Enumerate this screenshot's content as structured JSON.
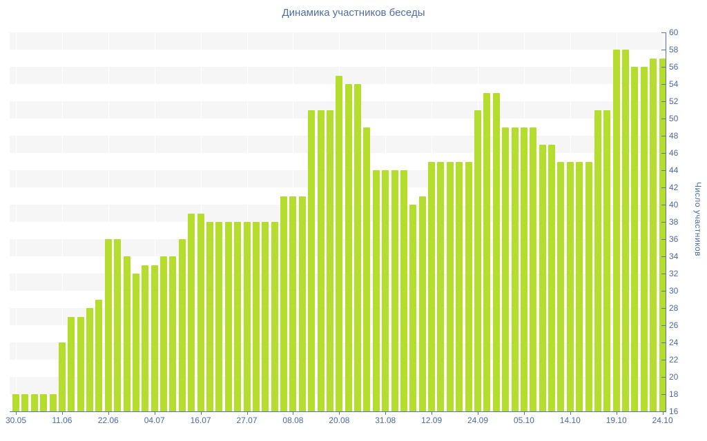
{
  "chart_data": {
    "type": "bar",
    "title": "Динамика участников беседы",
    "ylabel": "Число участников",
    "xlabel": "",
    "ylim": [
      16,
      60
    ],
    "y_tick_step": 2,
    "y_tick_labels": [
      "16",
      "18",
      "20",
      "22",
      "24",
      "26",
      "28",
      "30",
      "32",
      "34",
      "36",
      "38",
      "40",
      "42",
      "44",
      "46",
      "48",
      "50",
      "52",
      "54",
      "56",
      "58",
      "60"
    ],
    "x_tick_labels": [
      "30.05",
      "11.06",
      "22.06",
      "04.07",
      "16.07",
      "27.07",
      "08.08",
      "20.08",
      "31.08",
      "12.09",
      "24.09",
      "05.10",
      "14.10",
      "19.10",
      "24.10"
    ],
    "x_tick_every": 5,
    "values": [
      18,
      18,
      18,
      18,
      18,
      24,
      27,
      27,
      28,
      29,
      36,
      36,
      34,
      32,
      33,
      33,
      34,
      34,
      36,
      39,
      39,
      38,
      38,
      38,
      38,
      38,
      38,
      38,
      38,
      41,
      41,
      41,
      51,
      51,
      51,
      55,
      54,
      54,
      49,
      44,
      44,
      44,
      44,
      40,
      41,
      45,
      45,
      45,
      45,
      45,
      51,
      53,
      53,
      49,
      49,
      49,
      49,
      47,
      47,
      45,
      45,
      45,
      45,
      51,
      51,
      58,
      58,
      56,
      56,
      57,
      57
    ],
    "grid": "alternating horizontal gray bands, 2 units per band",
    "legend": "none",
    "colors": {
      "bar": "#b4dd2e",
      "axis": "#5674b2",
      "tick_label": "#4a69a6",
      "title": "#4f6da9",
      "band_gray": "#f6f6f7",
      "background": "#ffffff"
    }
  }
}
